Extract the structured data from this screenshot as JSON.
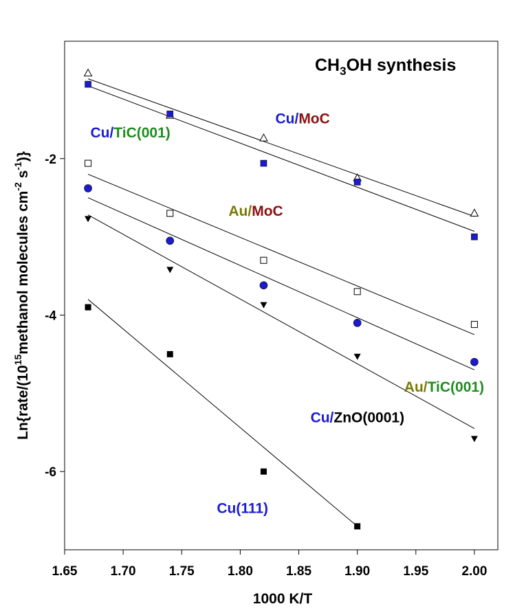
{
  "chart_data": {
    "type": "scatter",
    "title_parts": [
      "CH",
      "3",
      "OH synthesis"
    ],
    "xlabel": "1000 K/T",
    "ylabel_parts": [
      "Ln{rate/(10",
      "15",
      "methanol molecules cm",
      "-2",
      " s",
      "-1",
      ")}"
    ],
    "xlim": [
      1.65,
      2.02
    ],
    "ylim": [
      -7.0,
      -0.5
    ],
    "xticks": [
      "1.65",
      "1.70",
      "1.75",
      "1.80",
      "1.85",
      "1.90",
      "1.95",
      "2.00"
    ],
    "xtick_values": [
      1.65,
      1.7,
      1.75,
      1.8,
      1.85,
      1.9,
      1.95,
      2.0
    ],
    "yticks": [
      "-2",
      "-4",
      "-6"
    ],
    "ytick_values": [
      -2,
      -4,
      -6
    ],
    "grid": false,
    "series": [
      {
        "marker": "open-triangle-up",
        "x": [
          1.67,
          1.74,
          1.82,
          1.9,
          2.0
        ],
        "y": [
          -0.91,
          -1.45,
          -1.74,
          -2.25,
          -2.7
        ],
        "fit": [
          [
            1.67,
            -0.98
          ],
          [
            2.0,
            -2.74
          ]
        ]
      },
      {
        "marker": "filled-square",
        "x": [
          1.67,
          1.74,
          1.82,
          1.9,
          2.0
        ],
        "y": [
          -1.05,
          -1.43,
          -2.06,
          -2.3,
          -3.0
        ],
        "fit": [
          [
            1.67,
            -1.07
          ],
          [
            2.0,
            -2.93
          ]
        ]
      },
      {
        "marker": "open-square",
        "x": [
          1.67,
          1.74,
          1.82,
          1.9,
          2.0
        ],
        "y": [
          -2.06,
          -2.7,
          -3.3,
          -3.7,
          -4.12
        ],
        "fit": [
          [
            1.67,
            -2.2
          ],
          [
            2.0,
            -4.25
          ]
        ]
      },
      {
        "marker": "filled-circle",
        "x": [
          1.67,
          1.74,
          1.82,
          1.9,
          2.0
        ],
        "y": [
          -2.38,
          -3.05,
          -3.62,
          -4.1,
          -4.6
        ],
        "fit": [
          [
            1.67,
            -2.5
          ],
          [
            2.0,
            -4.7
          ]
        ]
      },
      {
        "marker": "filled-triangle-down",
        "x": [
          1.67,
          1.74,
          1.82,
          1.9,
          2.0
        ],
        "y": [
          -2.77,
          -3.42,
          -3.87,
          -4.53,
          -5.58
        ],
        "fit": [
          [
            1.67,
            -2.72
          ],
          [
            2.0,
            -5.45
          ]
        ]
      },
      {
        "marker": "black-square",
        "x": [
          1.67,
          1.74,
          1.82,
          1.9
        ],
        "y": [
          -3.9,
          -4.5,
          -6.0,
          -6.7
        ],
        "fit": [
          [
            1.67,
            -3.8
          ],
          [
            1.9,
            -6.7
          ]
        ]
      }
    ],
    "annotations": [
      {
        "parts": [
          {
            "text": "Cu/",
            "color": "#1b1bd0"
          },
          {
            "text": "MoC",
            "color": "#8b1010"
          }
        ],
        "x": 1.83,
        "y": -1.55
      },
      {
        "parts": [
          {
            "text": "Cu/",
            "color": "#1b1bd0"
          },
          {
            "text": "TiC(001)",
            "color": "#1e8c1e"
          }
        ],
        "x": 1.672,
        "y": -1.73
      },
      {
        "parts": [
          {
            "text": "Au/",
            "color": "#7a7a00"
          },
          {
            "text": "MoC",
            "color": "#8b1010"
          }
        ],
        "x": 1.79,
        "y": -2.73
      },
      {
        "parts": [
          {
            "text": "Au/",
            "color": "#7a7a00"
          },
          {
            "text": "TiC(001)",
            "color": "#1e8c1e"
          }
        ],
        "x": 1.94,
        "y": -4.98
      },
      {
        "parts": [
          {
            "text": "Cu/",
            "color": "#1b1bd0"
          },
          {
            "text": "ZnO(0001)",
            "color": "#000000"
          }
        ],
        "x": 1.86,
        "y": -5.37
      },
      {
        "parts": [
          {
            "text": "Cu(111)",
            "color": "#1b1bd0"
          }
        ],
        "x": 1.78,
        "y": -6.53
      }
    ],
    "colors": {
      "blue_marker": "#1b1bd0",
      "black": "#000000"
    }
  }
}
